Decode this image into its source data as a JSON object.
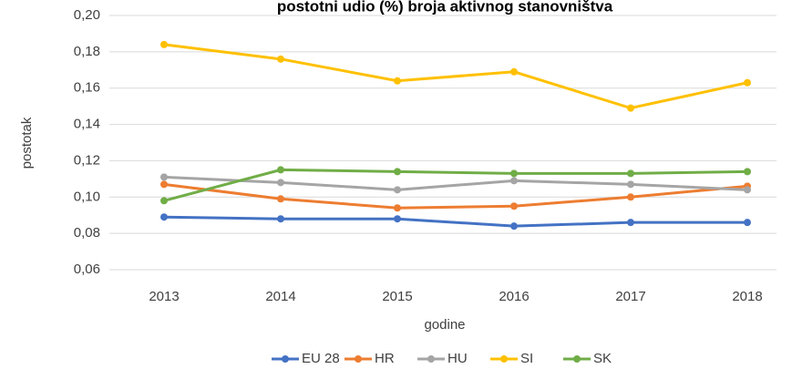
{
  "chart_data": {
    "type": "line",
    "title": "postotni udio (%) broja aktivnog stanovništva",
    "x_label": "godine",
    "y_label": "postotak",
    "categories": [
      "2013",
      "2014",
      "2015",
      "2016",
      "2017",
      "2018"
    ],
    "series": [
      {
        "name": "EU 28",
        "color": "#4472c4",
        "values": [
          0.089,
          0.088,
          0.088,
          0.084,
          0.086,
          0.086
        ]
      },
      {
        "name": "HR",
        "color": "#ed7d31",
        "values": [
          0.107,
          0.099,
          0.094,
          0.095,
          0.1,
          0.106
        ]
      },
      {
        "name": "HU",
        "color": "#a5a5a5",
        "values": [
          0.111,
          0.108,
          0.104,
          0.109,
          0.107,
          0.104
        ]
      },
      {
        "name": "SI",
        "color": "#ffc000",
        "values": [
          0.184,
          0.176,
          0.164,
          0.169,
          0.149,
          0.163
        ]
      },
      {
        "name": "SK",
        "color": "#70ad47",
        "values": [
          0.098,
          0.115,
          0.114,
          0.113,
          0.113,
          0.114
        ]
      }
    ],
    "ylim": [
      0.06,
      0.2
    ],
    "yticks": [
      {
        "value": 0.06,
        "label": "0,06"
      },
      {
        "value": 0.08,
        "label": "0,08"
      },
      {
        "value": 0.1,
        "label": "0,10"
      },
      {
        "value": 0.12,
        "label": "0,12"
      },
      {
        "value": 0.14,
        "label": "0,14"
      },
      {
        "value": 0.16,
        "label": "0,16"
      },
      {
        "value": 0.18,
        "label": "0,18"
      },
      {
        "value": 0.2,
        "label": "0,20"
      }
    ],
    "grid": true,
    "legend": "bottom"
  }
}
